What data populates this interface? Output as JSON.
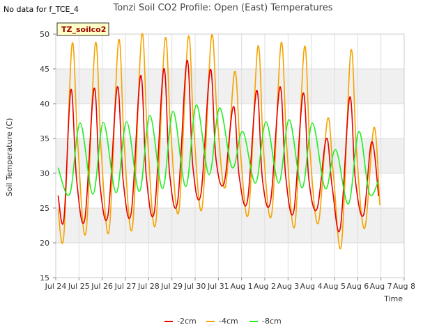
{
  "note": "No data for f_TCE_4",
  "chart_data": {
    "type": "line",
    "title": "Tonzi Soil CO2 Profile: Open (East) Temperatures",
    "station_label": "TZ_soilco2",
    "xlabel": "Time",
    "ylabel": "Soil Temperature (C)",
    "xlim": [
      24,
      39
    ],
    "ylim": [
      15,
      50
    ],
    "x_ticks": [
      "Jul 24",
      "Jul 25",
      "Jul 26",
      "Jul 27",
      "Jul 28",
      "Jul 29",
      "Jul 30",
      "Jul 31",
      "Aug 1",
      "Aug 2",
      "Aug 3",
      "Aug 4",
      "Aug 5",
      "Aug 6",
      "Aug 7",
      "Aug 8"
    ],
    "y_ticks": [
      15,
      20,
      25,
      30,
      35,
      40,
      45,
      50
    ],
    "grid": true,
    "banded_background": true,
    "legend_position": "bottom",
    "series": [
      {
        "name": "-2cm",
        "color": "#e60000",
        "x": [
          24.1,
          24.35,
          24.65,
          24.9,
          25.25,
          25.65,
          25.9,
          26.25,
          26.65,
          26.9,
          27.25,
          27.65,
          27.9,
          28.25,
          28.65,
          28.9,
          29.25,
          29.65,
          29.9,
          30.25,
          30.65,
          30.9,
          31.25,
          31.65,
          31.9,
          32.25,
          32.65,
          32.9,
          33.25,
          33.65,
          33.9,
          34.25,
          34.65,
          34.9,
          35.25,
          35.65,
          35.9,
          36.25,
          36.65,
          36.9,
          37.25,
          37.6,
          37.9
        ],
        "y": [
          26.8,
          23.4,
          42.0,
          29.0,
          23.4,
          42.2,
          28.5,
          24.0,
          42.4,
          29.0,
          24.3,
          44.0,
          29.5,
          24.6,
          45.0,
          30.0,
          26.0,
          46.2,
          31.0,
          27.0,
          44.9,
          32.0,
          28.6,
          39.6,
          29.5,
          26.0,
          41.9,
          29.0,
          26.0,
          42.4,
          29.5,
          24.6,
          41.5,
          29.0,
          24.9,
          35.0,
          28.0,
          22.1,
          40.9,
          29.0,
          24.0,
          34.5,
          26.7
        ]
      },
      {
        "name": "-4cm",
        "color": "#f5a300",
        "x": [
          24.1,
          24.35,
          24.7,
          24.95,
          25.3,
          25.7,
          25.95,
          26.3,
          26.7,
          26.95,
          27.3,
          27.7,
          27.95,
          28.3,
          28.7,
          28.95,
          29.3,
          29.7,
          29.95,
          30.3,
          30.7,
          30.95,
          31.3,
          31.7,
          31.95,
          32.3,
          32.7,
          32.95,
          33.3,
          33.7,
          33.95,
          34.3,
          34.7,
          34.95,
          35.3,
          35.7,
          35.95,
          36.3,
          36.7,
          36.95,
          37.3,
          37.7,
          37.95
        ],
        "y": [
          24.8,
          21.2,
          48.5,
          34.0,
          21.5,
          48.6,
          33.5,
          21.8,
          49.0,
          34.0,
          22.2,
          49.8,
          35.0,
          22.7,
          49.2,
          36.0,
          24.5,
          49.5,
          36.0,
          25.0,
          49.6,
          38.0,
          28.0,
          44.6,
          33.0,
          24.3,
          48.2,
          33.0,
          24.2,
          48.7,
          33.5,
          22.6,
          48.1,
          33.0,
          22.8,
          37.8,
          30.0,
          19.7,
          47.5,
          33.0,
          22.1,
          36.6,
          25.4
        ]
      },
      {
        "name": "-8cm",
        "color": "#22ee22",
        "x": [
          24.1,
          24.6,
          25.05,
          25.6,
          26.05,
          26.6,
          27.05,
          27.6,
          28.05,
          28.6,
          29.05,
          29.6,
          30.05,
          30.6,
          31.05,
          31.6,
          32.05,
          32.6,
          33.05,
          33.6,
          34.05,
          34.6,
          35.05,
          35.6,
          36.05,
          36.6,
          37.05,
          37.5,
          37.9
        ],
        "y": [
          30.8,
          27.0,
          37.2,
          27.0,
          37.3,
          27.2,
          37.4,
          27.4,
          38.3,
          27.8,
          38.9,
          28.1,
          39.8,
          29.8,
          39.4,
          30.8,
          36.0,
          28.6,
          37.4,
          28.6,
          37.7,
          27.9,
          37.2,
          27.8,
          33.4,
          25.6,
          36.0,
          27.1,
          29.0
        ]
      }
    ]
  }
}
